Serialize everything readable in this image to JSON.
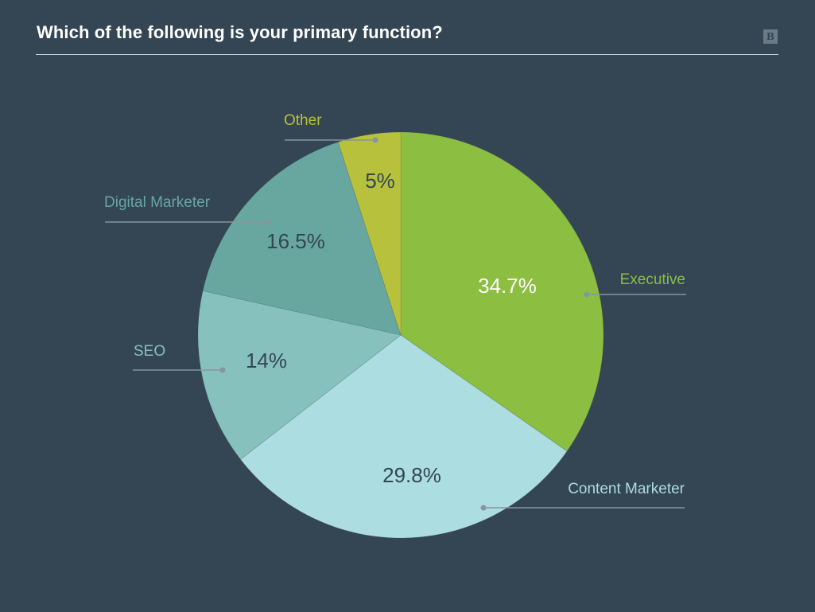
{
  "chart_data": {
    "type": "pie",
    "title": "Which of the following is your primary function?",
    "slices": [
      {
        "label": "Executive",
        "value": 34.7,
        "value_label": "34.7%",
        "color": "#8bbe41",
        "value_color": "#ffffff",
        "label_color": "#8bbe41"
      },
      {
        "label": "Content Marketer",
        "value": 29.8,
        "value_label": "29.8%",
        "color": "#acdde0",
        "value_color": "#344553",
        "label_color": "#acdde0"
      },
      {
        "label": "SEO",
        "value": 14,
        "value_label": "14%",
        "color": "#86c1bd",
        "value_color": "#344553",
        "label_color": "#86c1bd"
      },
      {
        "label": "Digital Marketer",
        "value": 16.5,
        "value_label": "16.5%",
        "color": "#68a7a0",
        "value_color": "#344553",
        "label_color": "#68a7a0"
      },
      {
        "label": "Other",
        "value": 5,
        "value_label": "5%",
        "color": "#b8c13b",
        "value_color": "#344553",
        "label_color": "#b8c13b"
      }
    ]
  },
  "brand_mark": "B",
  "colors": {
    "background": "#344553",
    "title": "#ffffff",
    "rule": "#c7d0d6",
    "leader_line": "#8795a0"
  }
}
